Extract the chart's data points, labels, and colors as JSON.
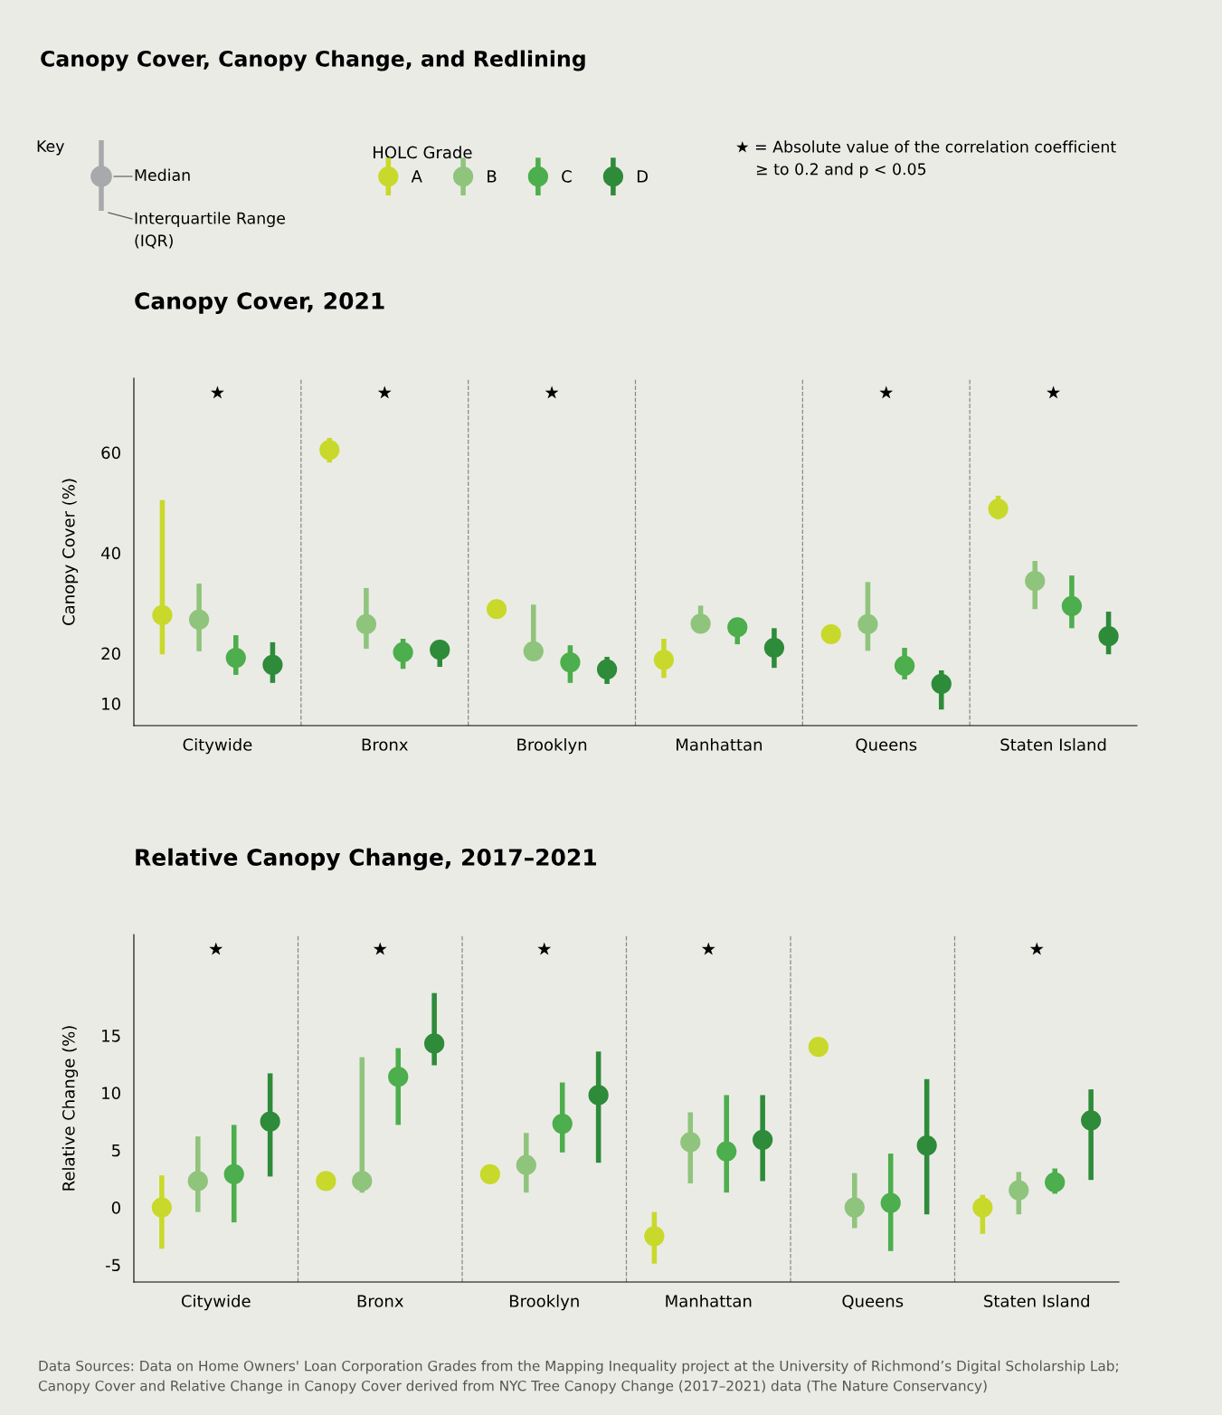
{
  "chart_data": [
    {
      "type": "other",
      "title": "Canopy Cover, Canopy Change, and Redlining",
      "annotations": [
        "Key",
        "Median",
        "Interquartile Range\n(IQR)",
        "★ = Absolute value of the correlation coefficient\n    ≥ to 0.2 and p < 0.05"
      ]
    },
    {
      "type": "scatter",
      "title": "Canopy Cover, 2021",
      "ylabel": "Canopy Cover (%)",
      "categories": [
        "Citywide",
        "Bronx",
        "Brooklyn",
        "Manhattan",
        "Queens",
        "Staten Island"
      ],
      "ylim": [
        5.6,
        74.8
      ],
      "yticks": [
        10,
        20,
        40,
        60
      ],
      "marker": "circle",
      "legend": "top",
      "legend_title": "HOLC Grade",
      "series": [
        {
          "name": "A",
          "color": "#c8d92b",
          "values": [
            27.6,
            60.5,
            28.8,
            18.7,
            23.8,
            48.8
          ],
          "errors": [
            [
              19.8,
              50.5
            ],
            [
              58.0,
              62.9
            ],
            null,
            [
              15.1,
              22.9
            ],
            null,
            [
              46.7,
              51.4
            ]
          ]
        },
        {
          "name": "B",
          "color": "#8fc47c",
          "values": [
            26.7,
            25.8,
            20.4,
            25.9,
            25.8,
            34.4
          ],
          "errors": [
            [
              20.4,
              33.9
            ],
            [
              20.9,
              33.0
            ],
            [
              20.4,
              29.7
            ],
            [
              24.3,
              29.5
            ],
            [
              20.5,
              34.2
            ],
            [
              28.8,
              38.4
            ]
          ]
        },
        {
          "name": "C",
          "color": "#4cae4c",
          "values": [
            19.1,
            20.2,
            18.2,
            25.2,
            17.5,
            29.4
          ],
          "errors": [
            [
              15.7,
              23.6
            ],
            [
              16.9,
              22.9
            ],
            [
              14.1,
              21.6
            ],
            [
              21.8,
              27.0
            ],
            [
              14.8,
              21.1
            ],
            [
              25.0,
              35.5
            ]
          ]
        },
        {
          "name": "D",
          "color": "#2e8b3a",
          "values": [
            17.7,
            20.7,
            16.8,
            21.1,
            13.9,
            23.4
          ],
          "errors": [
            [
              14.1,
              22.2
            ],
            [
              17.3,
              22.2
            ],
            [
              13.9,
              19.3
            ],
            [
              17.1,
              25.0
            ],
            [
              8.8,
              16.6
            ],
            [
              19.8,
              28.3
            ]
          ]
        }
      ],
      "annotations": [
        "★",
        "★",
        "★",
        "★",
        "★"
      ]
    },
    {
      "type": "scatter",
      "title": "Relative Canopy Change, 2017–2021",
      "ylabel": "Relative Change (%)",
      "categories": [
        "Citywide",
        "Bronx",
        "Brooklyn",
        "Manhattan",
        "Queens",
        "Staten Island"
      ],
      "ylim": [
        -6.5,
        23.8
      ],
      "yticks": [
        -5,
        0,
        5,
        10,
        15
      ],
      "marker": "circle",
      "series": [
        {
          "color": "#c8d92b",
          "values": [
            0,
            2.3,
            2.9,
            -2.5,
            14.0,
            0
          ],
          "errors": [
            [
              -3.6,
              2.8
            ],
            null,
            null,
            [
              -4.9,
              -0.4
            ],
            null,
            [
              -2.3,
              1.1
            ]
          ]
        },
        {
          "color": "#8fc47c",
          "values": [
            2.3,
            2.3,
            3.7,
            5.7,
            0,
            1.5
          ],
          "errors": [
            [
              -0.4,
              6.2
            ],
            [
              1.3,
              13.1
            ],
            [
              1.3,
              6.5
            ],
            [
              2.1,
              8.3
            ],
            [
              -1.8,
              3.0
            ],
            [
              -0.6,
              3.1
            ]
          ]
        },
        {
          "color": "#4cae4c",
          "values": [
            2.9,
            11.4,
            7.3,
            4.9,
            0.4,
            2.2
          ],
          "errors": [
            [
              -1.3,
              7.2
            ],
            [
              7.2,
              13.9
            ],
            [
              4.8,
              10.9
            ],
            [
              1.3,
              9.8
            ],
            [
              -3.8,
              4.7
            ],
            [
              1.2,
              3.4
            ]
          ]
        },
        {
          "color": "#2e8b3a",
          "values": [
            7.5,
            14.3,
            9.8,
            5.9,
            5.4,
            7.6
          ],
          "errors": [
            [
              2.7,
              11.7
            ],
            [
              12.4,
              18.7
            ],
            [
              3.9,
              13.6
            ],
            [
              2.3,
              9.8
            ],
            [
              -0.6,
              11.2
            ],
            [
              2.4,
              10.3
            ]
          ]
        }
      ],
      "annotations": [
        "★",
        "★",
        "★",
        "★",
        "★",
        "Data Sources: Data on Home Owners' Loan Corporation Grades from the Mapping Inequality project at the University of Richmond’s Digital Scholarship Lab;",
        "Canopy Cover and Relative Change in Canopy Cover derived from NYC Tree Canopy Change (2017–2021) data (The Nature Conservancy)"
      ]
    }
  ]
}
